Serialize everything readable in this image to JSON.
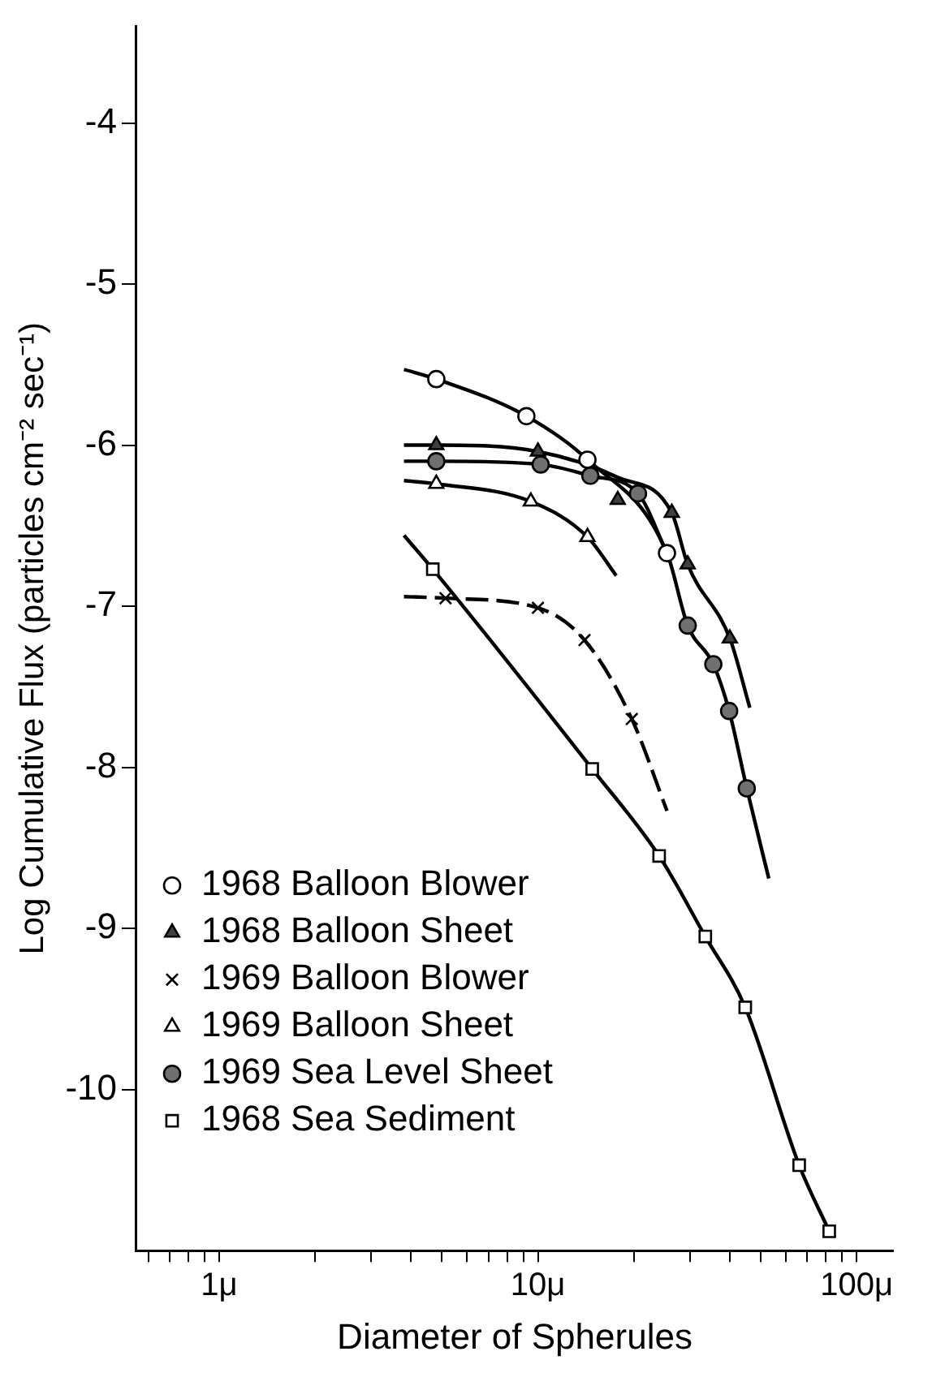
{
  "chart_data": {
    "type": "scatter",
    "xlabel": "Diameter of Spherules",
    "ylabel": "Log Cumulative Flux (particles cm⁻² sec⁻¹)",
    "log": "x",
    "xlim": [
      0.55,
      130
    ],
    "ylim": [
      -11,
      -3.4
    ],
    "xticks": [
      {
        "value": 0.6,
        "label": null
      },
      {
        "value": 0.7,
        "label": null
      },
      {
        "value": 0.8,
        "label": null
      },
      {
        "value": 0.9,
        "label": null
      },
      {
        "value": 1,
        "label": "1μ"
      },
      {
        "value": 2,
        "label": null
      },
      {
        "value": 3,
        "label": null
      },
      {
        "value": 4,
        "label": null
      },
      {
        "value": 5,
        "label": null
      },
      {
        "value": 6,
        "label": null
      },
      {
        "value": 7,
        "label": null
      },
      {
        "value": 8,
        "label": null
      },
      {
        "value": 9,
        "label": null
      },
      {
        "value": 10,
        "label": "10μ"
      },
      {
        "value": 20,
        "label": null
      },
      {
        "value": 30,
        "label": null
      },
      {
        "value": 40,
        "label": null
      },
      {
        "value": 50,
        "label": null
      },
      {
        "value": 60,
        "label": null
      },
      {
        "value": 70,
        "label": null
      },
      {
        "value": 80,
        "label": null
      },
      {
        "value": 90,
        "label": null
      },
      {
        "value": 100,
        "label": "100μ"
      }
    ],
    "yticks": [
      -10,
      -9,
      -8,
      -7,
      -6,
      -5,
      -4
    ],
    "grid": false,
    "legend": "bottom left",
    "series": [
      {
        "type": "line",
        "color": "#000000",
        "marker": "none",
        "line_style": "solid",
        "x": [
          3.8,
          4.8,
          9.2,
          14.3,
          25.4,
          29.5,
          35.5,
          39.8,
          45.2,
          53
        ],
        "values": [
          -5.53,
          -5.59,
          -5.82,
          -6.09,
          -6.67,
          -7.12,
          -7.36,
          -7.65,
          -8.13,
          -8.69
        ]
      },
      {
        "type": "line",
        "color": "#000000",
        "marker": "none",
        "line_style": "solid",
        "x": [
          3.8,
          4.8,
          10,
          17.8,
          26.3,
          29.5,
          40,
          46.2
        ],
        "values": [
          -6.0,
          -6.0,
          -6.04,
          -6.2,
          -6.42,
          -6.74,
          -7.2,
          -7.63
        ]
      },
      {
        "type": "line",
        "color": "#000000",
        "marker": "none",
        "line_style": "solid",
        "x": [
          3.8,
          4.8,
          10.2,
          14.6,
          20.6,
          25.4
        ],
        "values": [
          -6.1,
          -6.1,
          -6.12,
          -6.19,
          -6.3,
          -6.67
        ]
      },
      {
        "type": "line",
        "color": "#000000",
        "marker": "none",
        "line_style": "solid",
        "x": [
          3.8,
          4.8,
          9.5,
          14.3,
          17.6
        ],
        "values": [
          -6.22,
          -6.24,
          -6.35,
          -6.57,
          -6.81
        ]
      },
      {
        "type": "line",
        "color": "#000000",
        "marker": "none",
        "line_style": "dashed",
        "x": [
          3.8,
          5.13,
          10,
          14,
          19.7,
          25.4
        ],
        "values": [
          -6.94,
          -6.95,
          -7.01,
          -7.21,
          -7.7,
          -8.27
        ]
      },
      {
        "type": "line",
        "color": "#000000",
        "marker": "none",
        "line_style": "solid",
        "x": [
          3.8,
          4.68,
          14.8,
          24,
          33.5,
          44.7,
          66,
          82
        ],
        "values": [
          -6.56,
          -6.77,
          -8.01,
          -8.55,
          -9.05,
          -9.49,
          -10.47,
          -10.88
        ]
      },
      {
        "type": "scatter",
        "name": "1968 Balloon Blower",
        "color": "#ffffff",
        "marker": "circle",
        "x": [
          4.8,
          9.2,
          14.3,
          25.4
        ],
        "values": [
          -5.59,
          -5.82,
          -6.09,
          -6.67
        ]
      },
      {
        "type": "scatter",
        "name": "1968 Balloon Sheet",
        "color": "#404040",
        "marker": "triangle",
        "x": [
          4.8,
          10,
          17.8,
          26.3,
          29.5,
          40
        ],
        "values": [
          -6.0,
          -6.04,
          -6.34,
          -6.42,
          -6.74,
          -7.2
        ]
      },
      {
        "type": "scatter",
        "name": "1969 Balloon Blower",
        "color": "#000000",
        "marker": "cross",
        "x": [
          5.13,
          10,
          14,
          19.7
        ],
        "values": [
          -6.95,
          -7.01,
          -7.21,
          -7.7
        ]
      },
      {
        "type": "scatter",
        "name": "1969 Balloon Sheet",
        "color": "#ffffff",
        "marker": "triangle",
        "x": [
          4.8,
          9.5,
          14.3
        ],
        "values": [
          -6.24,
          -6.35,
          -6.57
        ]
      },
      {
        "type": "scatter",
        "name": "1969 Sea Level Sheet",
        "color": "#707070",
        "marker": "circle",
        "x": [
          4.8,
          10.2,
          14.6,
          20.6,
          29.5,
          35.5,
          39.8,
          45.2
        ],
        "values": [
          -6.1,
          -6.12,
          -6.19,
          -6.3,
          -7.12,
          -7.36,
          -7.65,
          -8.13
        ]
      },
      {
        "type": "scatter",
        "name": "1968 Sea Sediment",
        "color": "#ffffff",
        "marker": "square",
        "x": [
          4.68,
          14.8,
          24,
          33.5,
          44.7,
          66,
          82
        ],
        "values": [
          -6.77,
          -8.01,
          -8.55,
          -9.05,
          -9.49,
          -10.47,
          -10.88
        ]
      }
    ]
  }
}
